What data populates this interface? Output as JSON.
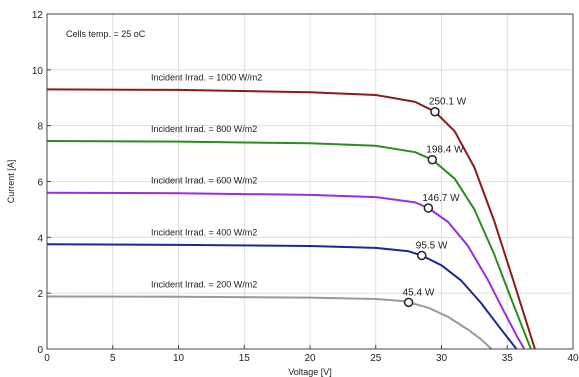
{
  "chart_data": {
    "type": "line",
    "title": "",
    "xlabel": "Voltage [V]",
    "ylabel": "Current [A]",
    "xlim": [
      0,
      40
    ],
    "ylim": [
      0,
      12
    ],
    "x_ticks": [
      0,
      5,
      10,
      15,
      20,
      25,
      30,
      35,
      40
    ],
    "y_ticks": [
      0,
      2,
      4,
      6,
      8,
      10,
      12
    ],
    "grid": true,
    "legend": "none",
    "note": "Cells temp.  = 25 oC",
    "series": [
      {
        "name": "Incident Irrad. = 1000 W/m2",
        "color": "#8b1a1a",
        "x": [
          0,
          10,
          20,
          25,
          28,
          29.5,
          31,
          32.5,
          34,
          35.5,
          36.5,
          37.1
        ],
        "y": [
          9.3,
          9.28,
          9.2,
          9.1,
          8.85,
          8.5,
          7.8,
          6.5,
          4.6,
          2.4,
          0.9,
          0
        ],
        "mpp": {
          "x": 29.5,
          "y": 8.5,
          "label": "250.1 W"
        }
      },
      {
        "name": "Incident Irrad. = 800 W/m2",
        "color": "#2e8b22",
        "x": [
          0,
          10,
          20,
          25,
          28,
          29.3,
          31,
          32.5,
          34,
          35.3,
          36.3,
          36.8
        ],
        "y": [
          7.45,
          7.43,
          7.37,
          7.28,
          7.05,
          6.78,
          6.1,
          5.0,
          3.4,
          1.8,
          0.6,
          0
        ],
        "mpp": {
          "x": 29.3,
          "y": 6.78,
          "label": "198.4 W"
        }
      },
      {
        "name": "Incident Irrad. = 600 W/m2",
        "color": "#9b30d9",
        "x": [
          0,
          10,
          20,
          25,
          28,
          29,
          30.5,
          32,
          33.5,
          34.8,
          35.8,
          36.3
        ],
        "y": [
          5.6,
          5.58,
          5.52,
          5.44,
          5.25,
          5.05,
          4.55,
          3.7,
          2.5,
          1.3,
          0.4,
          0
        ],
        "mpp": {
          "x": 29,
          "y": 5.05,
          "label": "146.7 W"
        }
      },
      {
        "name": "Incident Irrad. = 400 W/m2",
        "color": "#1c2a8c",
        "x": [
          0,
          10,
          20,
          25,
          27.5,
          28.5,
          30,
          31.5,
          33,
          34.3,
          35.2,
          35.7
        ],
        "y": [
          3.75,
          3.73,
          3.69,
          3.62,
          3.5,
          3.35,
          3.0,
          2.45,
          1.65,
          0.85,
          0.3,
          0
        ],
        "mpp": {
          "x": 28.5,
          "y": 3.35,
          "label": "95.5 W"
        }
      },
      {
        "name": "Incident Irrad. = 200 W/m2",
        "color": "#999999",
        "x": [
          0,
          10,
          20,
          25,
          27,
          27.5,
          29,
          30.5,
          32,
          33,
          33.8
        ],
        "y": [
          1.88,
          1.87,
          1.84,
          1.79,
          1.72,
          1.67,
          1.48,
          1.15,
          0.7,
          0.35,
          0
        ],
        "mpp": {
          "x": 27.5,
          "y": 1.67,
          "label": "45.4 W"
        }
      }
    ]
  }
}
